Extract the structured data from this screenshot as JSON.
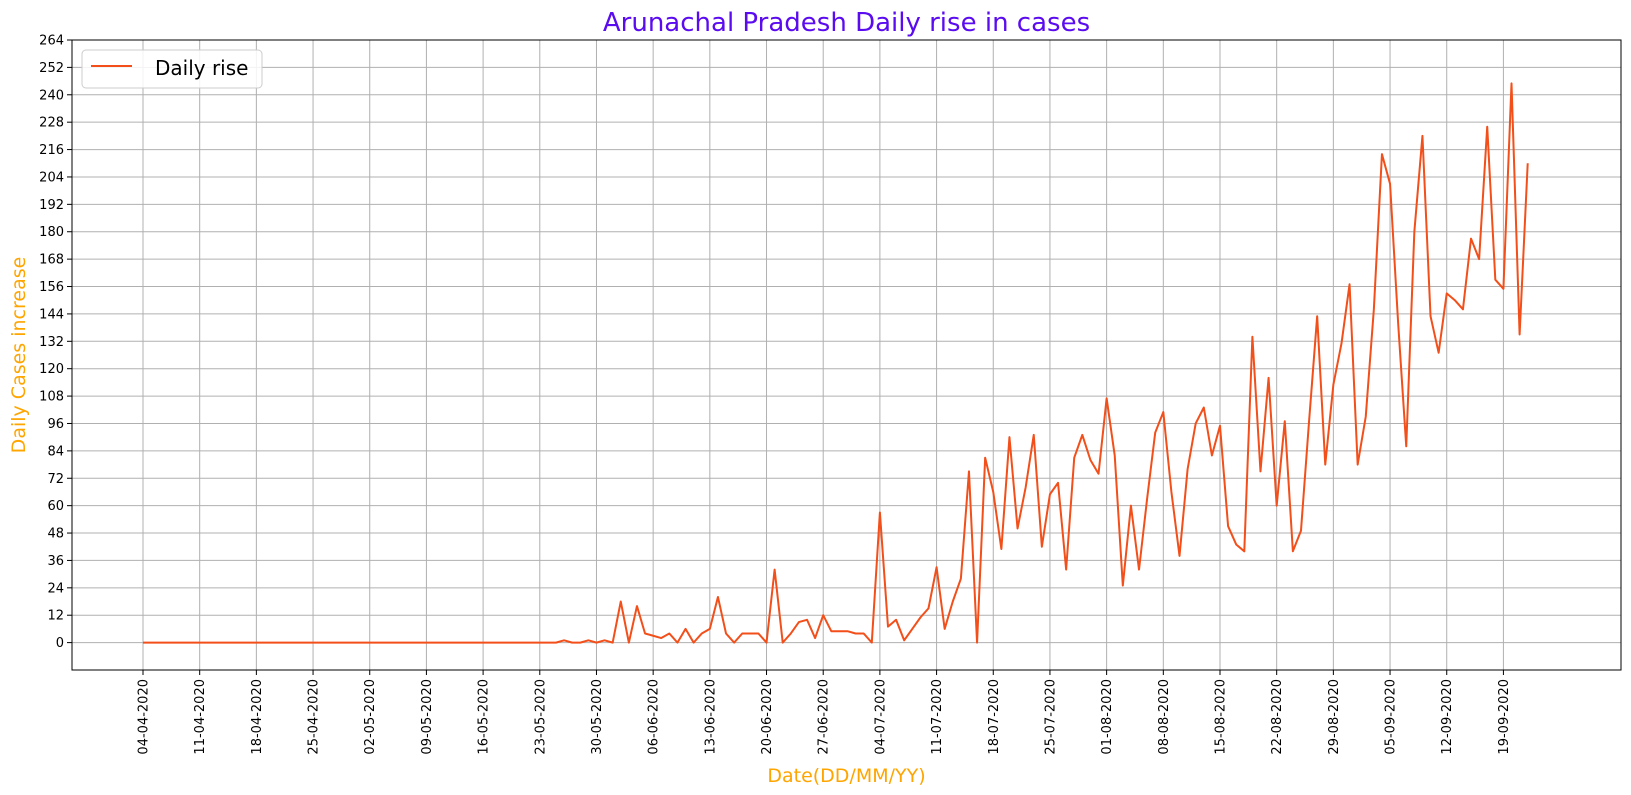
{
  "chart_data": {
    "type": "line",
    "title": "Arunachal Pradesh Daily rise in cases",
    "xlabel": "Date(DD/MM/YY)",
    "ylabel": "Daily Cases increase",
    "ylim": [
      -12,
      264
    ],
    "yticks": [
      0,
      12,
      24,
      36,
      48,
      60,
      72,
      84,
      96,
      108,
      120,
      132,
      144,
      156,
      168,
      180,
      192,
      204,
      216,
      228,
      240,
      252,
      264
    ],
    "xtick_labels": [
      "04-04-2020",
      "11-04-2020",
      "18-04-2020",
      "25-04-2020",
      "02-05-2020",
      "09-05-2020",
      "16-05-2020",
      "23-05-2020",
      "30-05-2020",
      "06-06-2020",
      "13-06-2020",
      "20-06-2020",
      "27-06-2020",
      "04-07-2020",
      "11-07-2020",
      "18-07-2020",
      "25-07-2020",
      "01-08-2020",
      "08-08-2020",
      "15-08-2020",
      "22-08-2020",
      "29-08-2020",
      "05-09-2020",
      "12-09-2020",
      "19-09-2020"
    ],
    "x_start": "04-04-2020",
    "x_end": "25-09-2020",
    "grid": true,
    "legend_position": "top-left",
    "series": [
      {
        "name": "Daily rise",
        "color": "#f24f1a",
        "values": [
          0,
          0,
          0,
          0,
          0,
          0,
          0,
          0,
          0,
          0,
          0,
          0,
          0,
          0,
          0,
          0,
          0,
          0,
          0,
          0,
          0,
          0,
          0,
          0,
          0,
          0,
          0,
          0,
          0,
          0,
          0,
          0,
          0,
          0,
          0,
          0,
          0,
          0,
          0,
          0,
          0,
          0,
          0,
          0,
          0,
          0,
          0,
          0,
          0,
          0,
          0,
          0,
          1,
          0,
          0,
          1,
          0,
          1,
          0,
          18,
          0,
          16,
          4,
          3,
          2,
          4,
          0,
          6,
          0,
          4,
          6,
          20,
          4,
          0,
          4,
          4,
          4,
          0,
          32,
          0,
          4,
          9,
          10,
          2,
          12,
          5,
          5,
          5,
          4,
          4,
          0,
          57,
          7,
          10,
          1,
          6,
          11,
          15,
          33,
          6,
          18,
          28,
          75,
          0,
          81,
          66,
          41,
          90,
          50,
          68,
          91,
          42,
          65,
          70,
          32,
          81,
          91,
          80,
          74,
          107,
          82,
          25,
          60,
          32,
          63,
          92,
          101,
          66,
          38,
          76,
          96,
          103,
          82,
          95,
          51,
          43,
          40,
          134,
          75,
          116,
          60,
          97,
          40,
          49,
          97,
          143,
          78,
          113,
          131,
          157,
          78,
          99,
          146,
          214,
          201,
          140,
          86,
          180,
          222,
          143,
          127,
          153,
          150,
          146,
          177,
          168,
          226,
          159,
          155,
          245,
          135,
          210
        ]
      }
    ]
  }
}
